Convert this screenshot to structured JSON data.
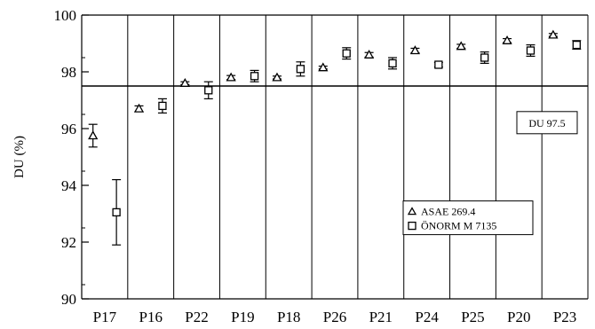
{
  "chart_data": {
    "type": "scatter",
    "categories": [
      "P17",
      "P16",
      "P22",
      "P19",
      "P18",
      "P26",
      "P21",
      "P24",
      "P25",
      "P20",
      "P23"
    ],
    "series": [
      {
        "name": "ASAE 269.4",
        "marker": "triangle",
        "values": [
          95.75,
          96.7,
          97.6,
          97.8,
          97.8,
          98.15,
          98.6,
          98.75,
          98.9,
          99.1,
          99.3
        ],
        "err": [
          0.4,
          0.1,
          0.05,
          0.07,
          0.05,
          0.05,
          0.08,
          0.08,
          0.07,
          0.07,
          0.05
        ]
      },
      {
        "name": "ÖNORM M 7135",
        "marker": "square",
        "values": [
          93.05,
          96.8,
          97.35,
          97.85,
          98.1,
          98.65,
          98.3,
          98.25,
          98.5,
          98.75,
          98.95
        ],
        "err": [
          1.15,
          0.25,
          0.3,
          0.2,
          0.25,
          0.2,
          0.2,
          0.08,
          0.2,
          0.2,
          0.15
        ]
      }
    ],
    "ylabel": "DU (%)",
    "xlabel": "",
    "ylim": [
      90,
      100
    ],
    "yticks": [
      90,
      92,
      94,
      96,
      98,
      100
    ],
    "reference_line": {
      "value": 97.5,
      "label": "DU 97.5"
    },
    "legend_position": "inside-lower-right",
    "grid": "vertical separators between groups"
  }
}
